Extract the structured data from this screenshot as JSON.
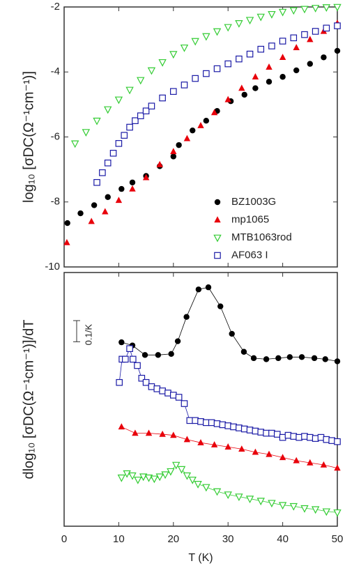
{
  "chart_data": [
    {
      "type": "scatter",
      "ylabel": "log₁₀ [σDC(Ω⁻¹cm⁻¹)]",
      "xlim": [
        0,
        50
      ],
      "xticks": [
        0,
        10,
        20,
        30,
        40,
        50
      ],
      "ylim": [
        -10,
        -2
      ],
      "yticks": [
        -2,
        -4,
        -6,
        -8,
        -10
      ],
      "legend": "lower right",
      "series": [
        {
          "name": "BZ1003G",
          "color": "#000000",
          "marker": "circle",
          "x": [
            0.6,
            3,
            5.5,
            8,
            10.5,
            12.5,
            15,
            17.5,
            20,
            21,
            23.5,
            26,
            28,
            30.5,
            33,
            35,
            37.5,
            40,
            42.5,
            45,
            47.5,
            50
          ],
          "values": [
            -8.65,
            -8.35,
            -8.1,
            -7.85,
            -7.6,
            -7.4,
            -7.2,
            -6.9,
            -6.6,
            -6.25,
            -5.8,
            -5.5,
            -5.2,
            -4.9,
            -4.7,
            -4.5,
            -4.3,
            -4.15,
            -3.95,
            -3.75,
            -3.55,
            -3.35
          ]
        },
        {
          "name": "mp1065",
          "color": "#e8000b",
          "marker": "triangle-up",
          "x": [
            0.5,
            5,
            7.5,
            10,
            12.5,
            15,
            17.5,
            20,
            22.5,
            25,
            27.5,
            30,
            32.5,
            35,
            37.5,
            40,
            42.5,
            45,
            47.5,
            50
          ],
          "values": [
            -9.25,
            -8.6,
            -8.3,
            -7.95,
            -7.6,
            -7.25,
            -6.85,
            -6.45,
            -6.05,
            -5.65,
            -5.25,
            -4.85,
            -4.5,
            -4.15,
            -3.85,
            -3.55,
            -3.25,
            -3.0,
            -2.75,
            -2.5
          ]
        },
        {
          "name": "MTB1063rod",
          "color": "#33cc33",
          "marker": "triangle-down",
          "x": [
            2,
            4,
            6,
            8,
            10,
            12,
            14,
            16,
            18,
            20,
            22,
            24,
            26,
            28,
            30,
            32,
            34,
            36,
            38,
            40,
            42,
            44,
            46,
            48,
            50
          ],
          "values": [
            -6.2,
            -5.85,
            -5.5,
            -5.15,
            -4.85,
            -4.55,
            -4.25,
            -3.95,
            -3.7,
            -3.45,
            -3.25,
            -3.05,
            -2.9,
            -2.75,
            -2.62,
            -2.5,
            -2.4,
            -2.3,
            -2.22,
            -2.15,
            -2.1,
            -2.06,
            -2.03,
            -2.01,
            -2.0
          ]
        },
        {
          "name": "AF063 I",
          "color": "#1a1aa6",
          "marker": "square",
          "x": [
            6,
            7,
            8,
            9,
            10,
            11,
            12,
            13,
            14,
            15,
            16,
            18,
            20,
            22,
            24,
            26,
            28,
            30,
            32,
            34,
            36,
            38,
            40,
            42,
            44,
            46,
            48,
            50
          ],
          "values": [
            -7.4,
            -7.1,
            -6.8,
            -6.5,
            -6.2,
            -5.95,
            -5.7,
            -5.5,
            -5.35,
            -5.2,
            -5.05,
            -4.8,
            -4.6,
            -4.4,
            -4.2,
            -4.05,
            -3.9,
            -3.75,
            -3.6,
            -3.45,
            -3.3,
            -3.2,
            -3.05,
            -2.95,
            -2.85,
            -2.75,
            -2.65,
            -2.58
          ]
        }
      ]
    },
    {
      "type": "scatter",
      "ylabel": "dlog₁₀ [σDC(Ω⁻¹cm⁻¹)]/dT",
      "xlabel": "T (K)",
      "xlim": [
        0,
        50
      ],
      "xticks": [
        0,
        10,
        20,
        30,
        40,
        50
      ],
      "ylim": [
        0,
        1.2
      ],
      "scale_bar": {
        "value": 0.1,
        "label": "0.1/K"
      },
      "series": [
        {
          "color": "#000000",
          "marker": "circle",
          "x": [
            10.5,
            12.5,
            14.8,
            17.2,
            19.6,
            20.8,
            22.4,
            24.6,
            26.4,
            28.6,
            30.7,
            32.9,
            34.7,
            37,
            39.2,
            41.3,
            43.5,
            45.8,
            47.8,
            50
          ],
          "values": [
            0.87,
            0.855,
            0.81,
            0.81,
            0.815,
            0.875,
            0.99,
            1.12,
            1.13,
            1.04,
            0.91,
            0.825,
            0.795,
            0.79,
            0.795,
            0.8,
            0.8,
            0.795,
            0.79,
            0.78
          ]
        },
        {
          "color": "#1a1aa6",
          "marker": "square",
          "x": [
            10.1,
            10.6,
            11.2,
            12,
            12.6,
            13.4,
            14.2,
            15,
            16,
            17,
            18,
            19,
            20,
            21,
            22,
            23,
            24,
            25,
            26,
            27,
            28,
            29,
            30,
            31,
            32,
            33,
            34,
            35,
            36,
            37,
            38,
            39,
            40,
            41,
            42,
            43,
            44,
            45,
            46,
            47,
            48,
            49,
            50
          ],
          "values": [
            0.68,
            0.79,
            0.79,
            0.84,
            0.79,
            0.76,
            0.7,
            0.68,
            0.66,
            0.65,
            0.64,
            0.63,
            0.62,
            0.61,
            0.58,
            0.5,
            0.5,
            0.495,
            0.49,
            0.49,
            0.485,
            0.48,
            0.475,
            0.47,
            0.465,
            0.46,
            0.455,
            0.45,
            0.445,
            0.44,
            0.44,
            0.435,
            0.42,
            0.43,
            0.425,
            0.42,
            0.425,
            0.42,
            0.415,
            0.42,
            0.41,
            0.405,
            0.4
          ]
        },
        {
          "color": "#e8000b",
          "marker": "triangle-up",
          "x": [
            10.5,
            13,
            15.5,
            18,
            20,
            22.5,
            25,
            27.5,
            30,
            32.5,
            35,
            37.5,
            40,
            42.5,
            45,
            47.5,
            50
          ],
          "values": [
            0.47,
            0.44,
            0.44,
            0.435,
            0.43,
            0.41,
            0.395,
            0.385,
            0.375,
            0.365,
            0.35,
            0.34,
            0.325,
            0.31,
            0.3,
            0.29,
            0.275
          ]
        },
        {
          "color": "#33cc33",
          "marker": "triangle-down",
          "x": [
            10.5,
            11.5,
            12.5,
            13.5,
            14.5,
            15.5,
            16.5,
            17.5,
            18.5,
            19.5,
            20.5,
            21.5,
            22.5,
            23.5,
            24.5,
            26,
            28,
            30,
            32,
            34,
            36,
            38,
            40,
            42,
            44,
            46,
            48,
            50
          ],
          "values": [
            0.23,
            0.25,
            0.24,
            0.22,
            0.235,
            0.23,
            0.225,
            0.235,
            0.245,
            0.26,
            0.29,
            0.27,
            0.24,
            0.22,
            0.2,
            0.185,
            0.165,
            0.15,
            0.14,
            0.13,
            0.12,
            0.11,
            0.1,
            0.095,
            0.085,
            0.08,
            0.07,
            0.065
          ]
        }
      ]
    }
  ]
}
